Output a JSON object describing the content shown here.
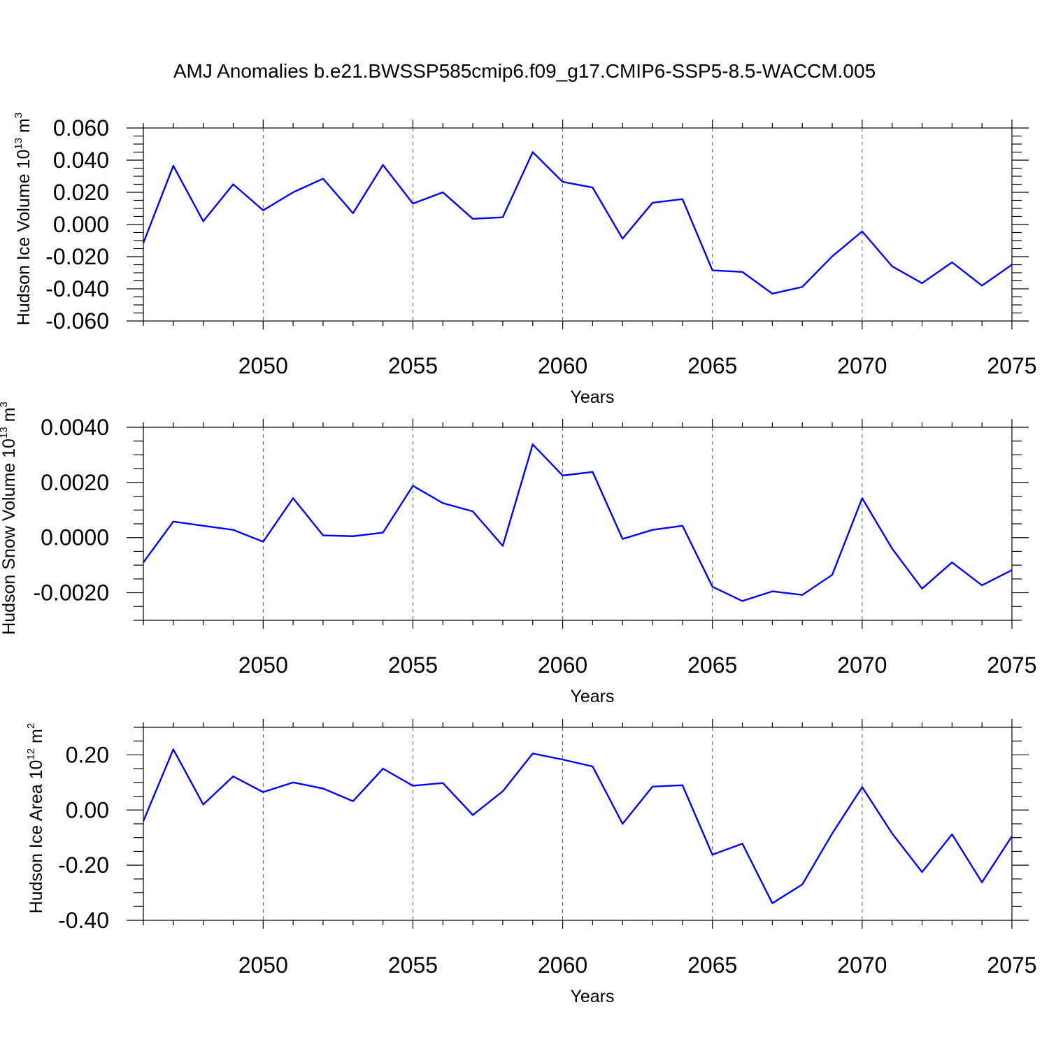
{
  "figure": {
    "title": "AMJ Anomalies b.e21.BWSSP585cmip6.f09_g17.CMIP6-SSP5-8.5-WACCM.005"
  },
  "style": {
    "line_color": "#0000ff",
    "grid_color": "#555555",
    "axis_color": "#000000"
  },
  "chart_data": [
    {
      "type": "line",
      "xlabel": "Years",
      "ylabel": "Hudson Ice Volume 10",
      "ylabel_exponent": "13",
      "ylabel_unit": " m",
      "ylabel_unit_exponent": "3",
      "xlim": [
        2046,
        2075
      ],
      "ylim": [
        -0.06,
        0.06
      ],
      "xticks": [
        2050,
        2055,
        2060,
        2065,
        2070,
        2075
      ],
      "yticks": [
        -0.06,
        -0.04,
        -0.02,
        0.0,
        0.02,
        0.04,
        0.06
      ],
      "ytick_labels": [
        "-0.060",
        "-0.040",
        "-0.020",
        "0.000",
        "0.020",
        "0.040",
        "0.060"
      ],
      "y_minor_step": 0.005,
      "x_minor_step": 1,
      "grid": "dashed vertical at major x ticks",
      "x": [
        2046,
        2047,
        2048,
        2049,
        2050,
        2051,
        2052,
        2053,
        2054,
        2055,
        2056,
        2057,
        2058,
        2059,
        2060,
        2061,
        2062,
        2063,
        2064,
        2065,
        2066,
        2067,
        2068,
        2069,
        2070,
        2071,
        2072,
        2073,
        2074,
        2075
      ],
      "series": [
        {
          "values": [
            -0.0115,
            0.0365,
            0.002,
            0.025,
            0.0088,
            0.02,
            0.0285,
            0.007,
            0.037,
            0.013,
            0.02,
            0.0035,
            0.0045,
            0.045,
            0.0265,
            0.023,
            -0.0088,
            0.0135,
            0.0158,
            -0.0285,
            -0.0295,
            -0.043,
            -0.0388,
            -0.0198,
            -0.0043,
            -0.026,
            -0.0365,
            -0.0235,
            -0.038,
            -0.025
          ]
        }
      ]
    },
    {
      "type": "line",
      "xlabel": "Years",
      "ylabel": "Hudson Snow Volume 10",
      "ylabel_exponent": "13",
      "ylabel_unit": " m",
      "ylabel_unit_exponent": "3",
      "xlim": [
        2046,
        2075
      ],
      "ylim": [
        -0.003,
        0.004
      ],
      "xticks": [
        2050,
        2055,
        2060,
        2065,
        2070,
        2075
      ],
      "yticks": [
        -0.002,
        0.0,
        0.002,
        0.004
      ],
      "ytick_labels": [
        "-0.0020",
        "0.0000",
        "0.0020",
        "0.0040"
      ],
      "y_minor_step": 0.0005,
      "x_minor_step": 1,
      "grid": "dashed vertical at major x ticks",
      "x": [
        2046,
        2047,
        2048,
        2049,
        2050,
        2051,
        2052,
        2053,
        2054,
        2055,
        2056,
        2057,
        2058,
        2059,
        2060,
        2061,
        2062,
        2063,
        2064,
        2065,
        2066,
        2067,
        2068,
        2069,
        2070,
        2071,
        2072,
        2073,
        2074,
        2075
      ],
      "series": [
        {
          "values": [
            -0.0009,
            0.00058,
            0.00043,
            0.00028,
            -0.00015,
            0.00143,
            8e-05,
            5e-05,
            0.00018,
            0.00188,
            0.00125,
            0.00095,
            -0.0003,
            0.00338,
            0.00225,
            0.00238,
            -5e-05,
            0.00028,
            0.00043,
            -0.00178,
            -0.0023,
            -0.00195,
            -0.00208,
            -0.00135,
            0.00143,
            -0.0004,
            -0.00185,
            -0.0009,
            -0.00173,
            -0.00118
          ]
        }
      ]
    },
    {
      "type": "line",
      "xlabel": "Years",
      "ylabel": "Hudson Ice Area 10",
      "ylabel_exponent": "12",
      "ylabel_unit": " m",
      "ylabel_unit_exponent": "2",
      "xlim": [
        2046,
        2075
      ],
      "ylim": [
        -0.4,
        0.3
      ],
      "xticks": [
        2050,
        2055,
        2060,
        2065,
        2070,
        2075
      ],
      "yticks": [
        -0.4,
        -0.2,
        0.0,
        0.2
      ],
      "ytick_labels": [
        "-0.40",
        "-0.20",
        "0.00",
        "0.20"
      ],
      "y_minor_step": 0.05,
      "x_minor_step": 1,
      "grid": "dashed vertical at major x ticks",
      "x": [
        2046,
        2047,
        2048,
        2049,
        2050,
        2051,
        2052,
        2053,
        2054,
        2055,
        2056,
        2057,
        2058,
        2059,
        2060,
        2061,
        2062,
        2063,
        2064,
        2065,
        2066,
        2067,
        2068,
        2069,
        2070,
        2071,
        2072,
        2073,
        2074,
        2075
      ],
      "series": [
        {
          "values": [
            -0.04,
            0.22,
            0.02,
            0.122,
            0.065,
            0.1,
            0.078,
            0.032,
            0.15,
            0.088,
            0.098,
            -0.018,
            0.068,
            0.205,
            0.183,
            0.158,
            -0.05,
            0.085,
            0.09,
            -0.162,
            -0.122,
            -0.338,
            -0.27,
            -0.085,
            0.083,
            -0.085,
            -0.225,
            -0.088,
            -0.262,
            -0.095
          ]
        }
      ]
    }
  ]
}
